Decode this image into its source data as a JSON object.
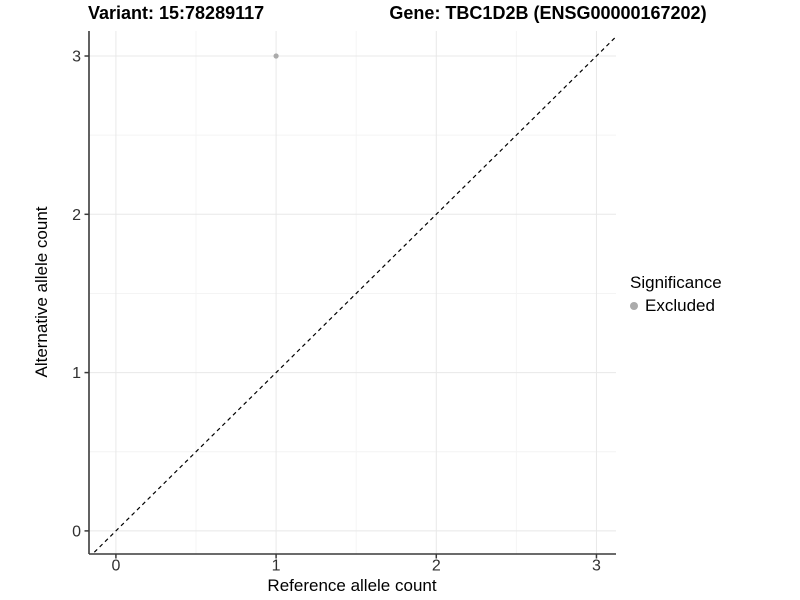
{
  "titles": {
    "left": "Variant: 15:78289117",
    "right": "Gene: TBC1D2B (ENSG00000167202)"
  },
  "chart_data": {
    "type": "scatter",
    "xlabel": "Reference allele count",
    "ylabel": "Alternative allele count",
    "xlim": [
      -0.168,
      3.122
    ],
    "ylim": [
      -0.146,
      3.158
    ],
    "xticks": [
      0,
      1,
      2,
      3
    ],
    "yticks": [
      0,
      1,
      2,
      3
    ],
    "minor_xticks": [
      0.5,
      1.5,
      2.5
    ],
    "minor_yticks": [
      0.5,
      1.5,
      2.5
    ],
    "grid": "major+minor",
    "abline": {
      "slope": 1,
      "intercept": 0,
      "style": "dashed"
    },
    "series": [
      {
        "name": "Excluded",
        "color": "#ABABAB",
        "points": [
          {
            "x": 1,
            "y": 3
          }
        ]
      }
    ],
    "legend": {
      "title": "Significance",
      "position": "right",
      "entries": [
        {
          "label": "Excluded",
          "color": "#ABABAB"
        }
      ]
    },
    "colors": {
      "background": "#FFFFFF",
      "grid_major": "#E8E8E8",
      "grid_minor": "#F4F4F4",
      "axis_line": "#3A3A3A",
      "tick_label": "#303030",
      "dashed_line": "#000000"
    }
  }
}
